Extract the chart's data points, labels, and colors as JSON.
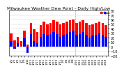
{
  "title": "Milwaukee Weather Dew Point - Daily High/Low",
  "title_fontsize": 4.5,
  "bg_color": "#ffffff",
  "plot_bg_color": "#ffffff",
  "ylim": [
    -20,
    80
  ],
  "yticks": [
    -20,
    -10,
    0,
    10,
    20,
    30,
    40,
    50,
    60,
    70,
    80
  ],
  "high_color": "#ff0000",
  "low_color": "#0000ff",
  "grid_color": "#cccccc",
  "dashed_line_color": "#aaaaaa",
  "categories": [
    "1/1",
    "1/3",
    "1/5",
    "1/7",
    "1/9",
    "1/11",
    "1/13",
    "1/15",
    "1/17",
    "1/19",
    "1/21",
    "1/23",
    "1/25",
    "1/27",
    "1/29",
    "1/31",
    "2/2",
    "2/4",
    "2/6",
    "2/8",
    "2/10",
    "2/12",
    "2/14",
    "2/16",
    "2/18",
    "2/20",
    "2/22",
    "2/24",
    "2/26",
    "2/28"
  ],
  "highs": [
    30,
    14,
    22,
    12,
    35,
    5,
    52,
    38,
    32,
    48,
    55,
    50,
    52,
    58,
    55,
    50,
    52,
    55,
    58,
    60,
    52,
    55,
    58,
    52,
    48,
    50,
    52,
    55,
    52,
    48
  ],
  "lows": [
    12,
    -5,
    8,
    0,
    18,
    -14,
    28,
    12,
    8,
    22,
    28,
    26,
    28,
    32,
    28,
    22,
    26,
    28,
    32,
    36,
    26,
    28,
    32,
    26,
    20,
    24,
    26,
    30,
    26,
    22
  ],
  "legend_dot_high": "High",
  "legend_dot_low": "Low"
}
